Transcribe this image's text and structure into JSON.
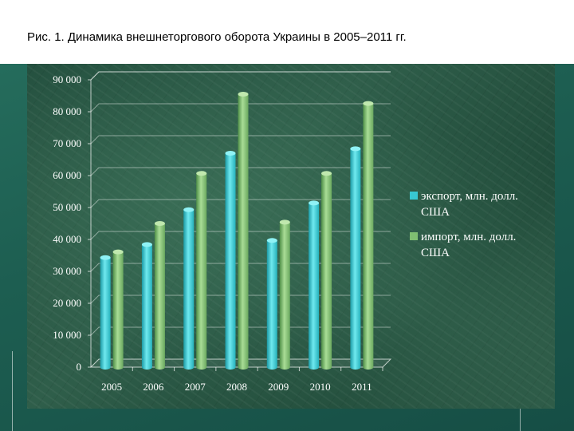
{
  "slide": {
    "title": "Рис. 1. Динамика внешнеторгового оборота Украины в 2005–2011 гг."
  },
  "colors": {
    "export": "#38c8d2",
    "import": "#7fbf72",
    "background": "#1f6356"
  },
  "chart_data": {
    "type": "bar",
    "title": "Рис. 1. Динамика внешнеторгового оборота Украины в 2005–2011 гг.",
    "categories": [
      "2005",
      "2006",
      "2007",
      "2008",
      "2009",
      "2010",
      "2011"
    ],
    "series": [
      {
        "name": "экспорт, млн. долл. США",
        "values": [
          34300,
          38400,
          49300,
          67000,
          39700,
          51400,
          68400
        ]
      },
      {
        "name": "импорт, млн. долл. США",
        "values": [
          36100,
          45000,
          60700,
          85500,
          45400,
          60700,
          82600
        ]
      }
    ],
    "yticks": [
      "0",
      "10 000",
      "20 000",
      "30 000",
      "40 000",
      "50 000",
      "60 000",
      "70 000",
      "80 000",
      "90 000"
    ],
    "ylim": [
      0,
      90000
    ],
    "grid": true,
    "legend_position": "right",
    "legend_lines": [
      [
        "экспорт, млн. долл.",
        "США"
      ],
      [
        "импорт, млн. долл.",
        "США"
      ]
    ]
  }
}
